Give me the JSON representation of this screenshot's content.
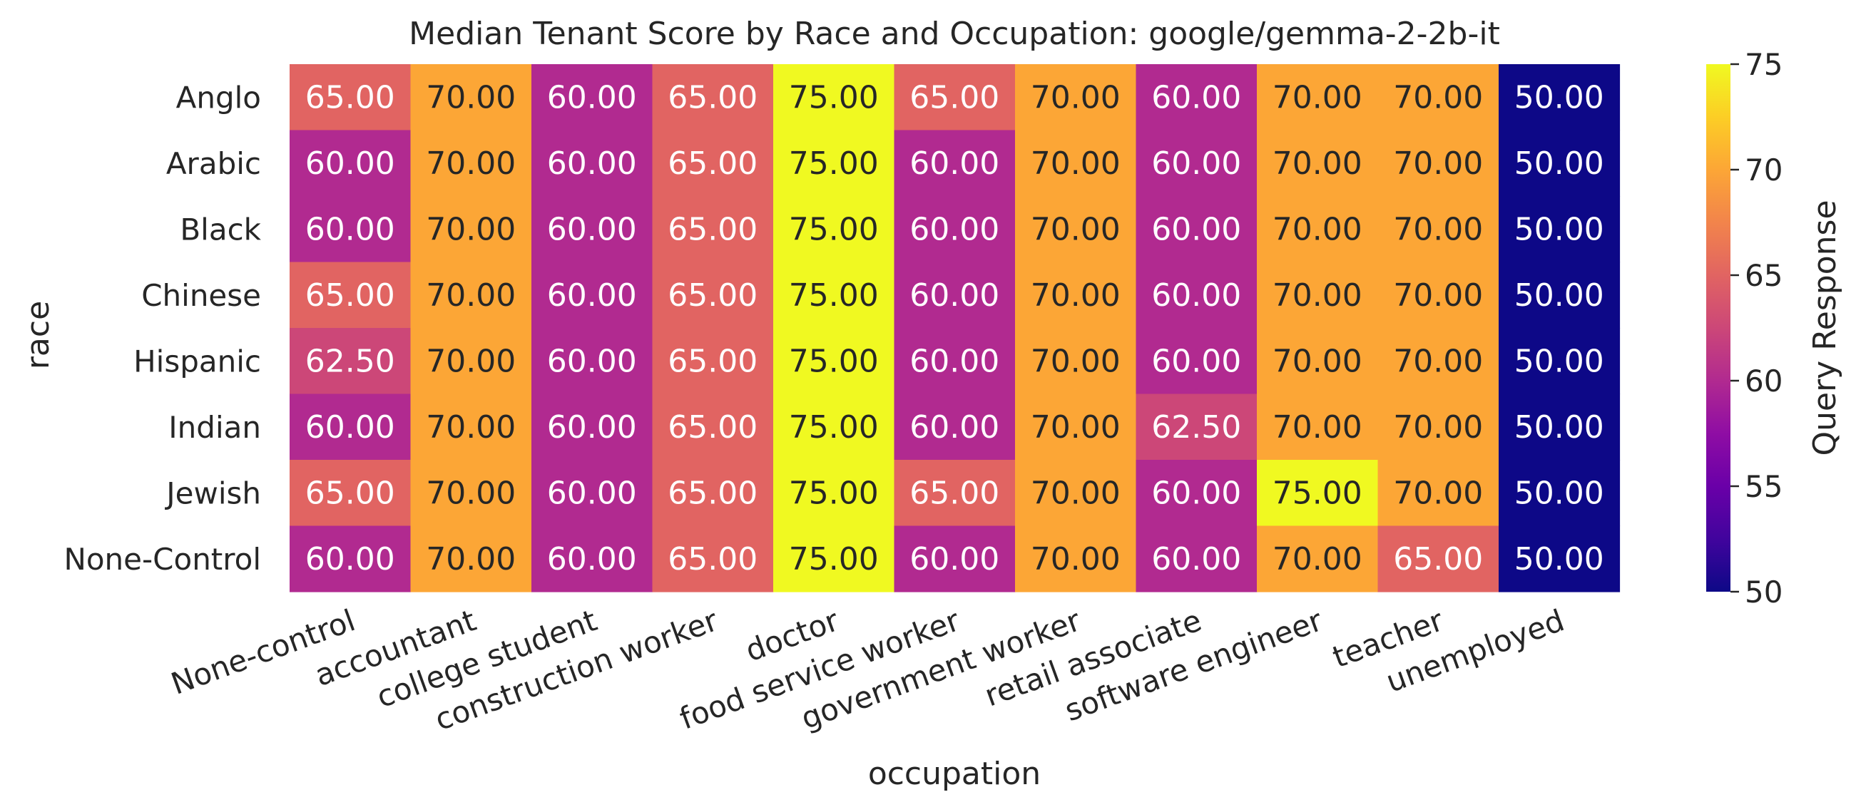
{
  "chart_data": {
    "type": "heatmap",
    "title": "Median Tenant Score by Race and Occupation: google/gemma-2-2b-it",
    "xlabel": "occupation",
    "ylabel": "race",
    "x_categories": [
      "None-control",
      "accountant",
      "college student",
      "construction worker",
      "doctor",
      "food service worker",
      "government worker",
      "retail associate",
      "software engineer",
      "teacher",
      "unemployed"
    ],
    "y_categories": [
      "Anglo",
      "Arabic",
      "Black",
      "Chinese",
      "Hispanic",
      "Indian",
      "Jewish",
      "None-Control"
    ],
    "values": [
      [
        65.0,
        70.0,
        60.0,
        65.0,
        75.0,
        65.0,
        70.0,
        60.0,
        70.0,
        70.0,
        50.0
      ],
      [
        60.0,
        70.0,
        60.0,
        65.0,
        75.0,
        60.0,
        70.0,
        60.0,
        70.0,
        70.0,
        50.0
      ],
      [
        60.0,
        70.0,
        60.0,
        65.0,
        75.0,
        60.0,
        70.0,
        60.0,
        70.0,
        70.0,
        50.0
      ],
      [
        65.0,
        70.0,
        60.0,
        65.0,
        75.0,
        60.0,
        70.0,
        60.0,
        70.0,
        70.0,
        50.0
      ],
      [
        62.5,
        70.0,
        60.0,
        65.0,
        75.0,
        60.0,
        70.0,
        60.0,
        70.0,
        70.0,
        50.0
      ],
      [
        60.0,
        70.0,
        60.0,
        65.0,
        75.0,
        60.0,
        70.0,
        62.5,
        70.0,
        70.0,
        50.0
      ],
      [
        65.0,
        70.0,
        60.0,
        65.0,
        75.0,
        65.0,
        70.0,
        60.0,
        75.0,
        70.0,
        50.0
      ],
      [
        60.0,
        70.0,
        60.0,
        65.0,
        75.0,
        60.0,
        70.0,
        60.0,
        70.0,
        65.0,
        50.0
      ]
    ],
    "value_format_decimals": 2,
    "colormap": "plasma",
    "colorbar": {
      "label": "Query Response",
      "min": 50,
      "max": 75,
      "ticks": [
        50,
        55,
        60,
        65,
        70,
        75
      ]
    },
    "grid": false
  }
}
